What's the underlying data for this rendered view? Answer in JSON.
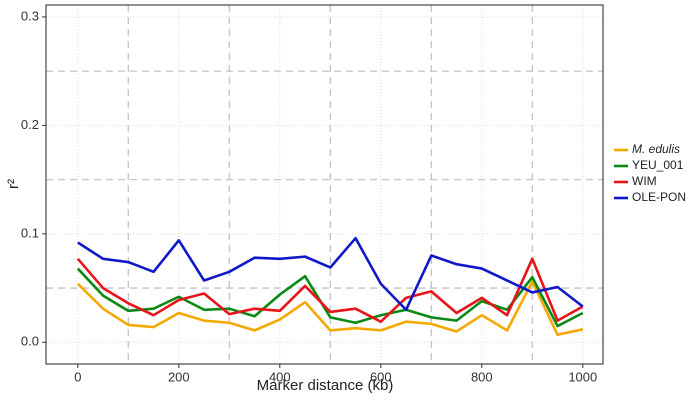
{
  "chart_data": {
    "type": "line",
    "x_label": "Marker distance (kb)",
    "y_label": "r²",
    "x": [
      0,
      50,
      100,
      150,
      200,
      250,
      300,
      350,
      400,
      450,
      500,
      550,
      600,
      650,
      700,
      750,
      800,
      850,
      900,
      950,
      1000
    ],
    "series": [
      {
        "name": "M. edulis",
        "color": "#f5a800",
        "italic": true,
        "values": [
          0.054,
          0.031,
          0.016,
          0.014,
          0.027,
          0.02,
          0.018,
          0.011,
          0.021,
          0.037,
          0.011,
          0.013,
          0.011,
          0.019,
          0.017,
          0.01,
          0.025,
          0.011,
          0.056,
          0.007,
          0.012
        ]
      },
      {
        "name": "YEU_001",
        "color": "#0a8a14",
        "values": [
          0.068,
          0.043,
          0.029,
          0.031,
          0.042,
          0.03,
          0.031,
          0.024,
          0.044,
          0.061,
          0.023,
          0.018,
          0.025,
          0.03,
          0.023,
          0.02,
          0.038,
          0.03,
          0.06,
          0.015,
          0.027
        ]
      },
      {
        "name": "WIM",
        "color": "#e8141a",
        "values": [
          0.077,
          0.05,
          0.036,
          0.025,
          0.039,
          0.045,
          0.026,
          0.031,
          0.029,
          0.052,
          0.028,
          0.031,
          0.019,
          0.041,
          0.047,
          0.027,
          0.041,
          0.025,
          0.077,
          0.02,
          0.033
        ]
      },
      {
        "name": "OLE-PON",
        "color": "#1018c8",
        "values": [
          0.092,
          0.077,
          0.074,
          0.065,
          0.094,
          0.057,
          0.065,
          0.078,
          0.077,
          0.079,
          0.069,
          0.096,
          0.054,
          0.03,
          0.08,
          0.072,
          0.068,
          0.057,
          0.046,
          0.051,
          0.033
        ]
      }
    ],
    "xlim": [
      -63,
      1040
    ],
    "ylim": [
      -0.02,
      0.311
    ],
    "xticks": [
      0,
      200,
      400,
      600,
      800,
      1000
    ],
    "yticks": [
      {
        "value": 0,
        "label": "0.0"
      },
      {
        "value": 0.1,
        "label": "0.1"
      },
      {
        "value": 0.2,
        "label": "0.2"
      },
      {
        "value": 0.3,
        "label": "0.3"
      }
    ],
    "reference_x": [
      100,
      300,
      500,
      700,
      900
    ],
    "reference_y": [
      0.05,
      0.15,
      0.25
    ],
    "grid": true,
    "legend_position": "right"
  }
}
